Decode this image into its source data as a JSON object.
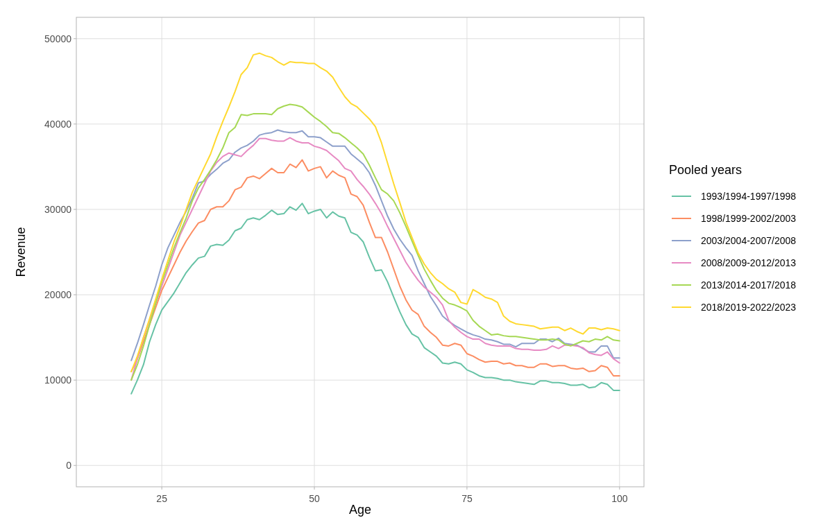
{
  "chart_data": {
    "type": "line",
    "xlabel": "Age",
    "ylabel": "Revenue",
    "legend_title": "Pooled years",
    "x": [
      20,
      21,
      22,
      23,
      24,
      25,
      26,
      27,
      28,
      29,
      30,
      31,
      32,
      33,
      34,
      35,
      36,
      37,
      38,
      39,
      40,
      41,
      42,
      43,
      44,
      45,
      46,
      47,
      48,
      49,
      50,
      51,
      52,
      53,
      54,
      55,
      56,
      57,
      58,
      59,
      60,
      61,
      62,
      63,
      64,
      65,
      66,
      67,
      68,
      69,
      70,
      71,
      72,
      73,
      74,
      75,
      76,
      77,
      78,
      79,
      80,
      81,
      82,
      83,
      84,
      85,
      86,
      87,
      88,
      89,
      90,
      91,
      92,
      93,
      94,
      95,
      96,
      97,
      98,
      99,
      100
    ],
    "series": [
      {
        "name": "1993/1994-1997/1998",
        "color": "#66c2a5",
        "values": [
          8400,
          10000,
          11800,
          14500,
          16500,
          18200,
          19200,
          20200,
          21400,
          22600,
          23500,
          24300,
          24500,
          25700,
          25900,
          25800,
          26400,
          27500,
          27800,
          28800,
          29000,
          28800,
          29300,
          29900,
          29400,
          29500,
          30300,
          29900,
          30700,
          29500,
          29800,
          30000,
          29000,
          29700,
          29200,
          29000,
          27300,
          27000,
          26200,
          24400,
          22800,
          22900,
          21500,
          19700,
          18000,
          16500,
          15400,
          15000,
          13800,
          13300,
          12800,
          12000,
          11900,
          12100,
          11900,
          11200,
          10900,
          10500,
          10300,
          10300,
          10200,
          10000,
          10000,
          9800,
          9700,
          9600,
          9500,
          9900,
          9900,
          9700,
          9700,
          9600,
          9400,
          9400,
          9500,
          9100,
          9200,
          9700,
          9500,
          8800,
          8800
        ]
      },
      {
        "name": "1998/1999-2002/2003",
        "color": "#fc8d62",
        "values": [
          11000,
          12500,
          14500,
          16500,
          18500,
          20500,
          22000,
          23500,
          25000,
          26300,
          27400,
          28400,
          28700,
          30000,
          30300,
          30300,
          31000,
          32300,
          32600,
          33700,
          33900,
          33600,
          34200,
          34800,
          34300,
          34300,
          35300,
          34900,
          35800,
          34500,
          34800,
          35000,
          33700,
          34500,
          34000,
          33700,
          31800,
          31500,
          30500,
          28500,
          26700,
          26700,
          25000,
          23000,
          21000,
          19400,
          18200,
          17700,
          16300,
          15600,
          15000,
          14100,
          14000,
          14300,
          14100,
          13100,
          12800,
          12400,
          12100,
          12200,
          12200,
          11900,
          12000,
          11700,
          11700,
          11500,
          11500,
          11900,
          11900,
          11600,
          11700,
          11700,
          11400,
          11300,
          11400,
          11000,
          11100,
          11700,
          11500,
          10500,
          10500
        ]
      },
      {
        "name": "2003/2004-2007/2008",
        "color": "#8da0cb",
        "values": [
          12300,
          14300,
          16500,
          18800,
          21000,
          23500,
          25500,
          27000,
          28500,
          29800,
          31300,
          33100,
          33300,
          34100,
          34700,
          35400,
          35800,
          36700,
          37200,
          37500,
          38000,
          38700,
          38900,
          39000,
          39300,
          39100,
          39000,
          39000,
          39200,
          38500,
          38500,
          38400,
          37900,
          37400,
          37400,
          37400,
          36500,
          35900,
          35300,
          34300,
          32800,
          31000,
          29200,
          27700,
          26500,
          25500,
          24600,
          22800,
          21300,
          19800,
          18700,
          17500,
          16900,
          16400,
          16000,
          15600,
          15300,
          15100,
          14800,
          14700,
          14500,
          14200,
          14200,
          13900,
          14300,
          14300,
          14300,
          14800,
          14800,
          14500,
          14900,
          14300,
          14200,
          14100,
          13700,
          13300,
          13300,
          14000,
          14000,
          12600,
          12600
        ]
      },
      {
        "name": "2008/2009-2012/2013",
        "color": "#e78ac3",
        "values": [
          10000,
          12500,
          15000,
          17000,
          19000,
          21000,
          23000,
          25000,
          27000,
          28500,
          30000,
          31500,
          33000,
          34500,
          35500,
          36200,
          36600,
          36400,
          36200,
          36900,
          37500,
          38300,
          38300,
          38100,
          38000,
          38000,
          38400,
          38000,
          37800,
          37800,
          37400,
          37200,
          36900,
          36300,
          35700,
          34800,
          34500,
          33500,
          32700,
          31800,
          30700,
          29500,
          28000,
          26600,
          25200,
          23800,
          22700,
          21700,
          20900,
          20300,
          19700,
          18800,
          17000,
          16200,
          15600,
          15100,
          14800,
          14800,
          14300,
          14100,
          14000,
          14000,
          14000,
          13700,
          13600,
          13600,
          13500,
          13500,
          13600,
          14000,
          13700,
          14100,
          14100,
          14000,
          13800,
          13200,
          13000,
          12900,
          13300,
          12500,
          12000
        ]
      },
      {
        "name": "2013/2014-2017/2018",
        "color": "#a6d854",
        "values": [
          10000,
          11800,
          14000,
          16500,
          19000,
          21500,
          23500,
          25500,
          27300,
          29000,
          31000,
          32500,
          33500,
          34600,
          35800,
          37200,
          39000,
          39600,
          41100,
          41000,
          41200,
          41200,
          41200,
          41100,
          41800,
          42100,
          42300,
          42200,
          42000,
          41400,
          40800,
          40300,
          39700,
          39000,
          38900,
          38400,
          37800,
          37200,
          36500,
          35200,
          33700,
          32300,
          31800,
          31000,
          29600,
          28000,
          26300,
          24600,
          23000,
          21700,
          20500,
          19600,
          19000,
          18800,
          18500,
          18100,
          17000,
          16300,
          15800,
          15300,
          15400,
          15200,
          15100,
          15100,
          15000,
          14900,
          14800,
          14700,
          14700,
          14800,
          14700,
          14200,
          14000,
          14300,
          14600,
          14500,
          14800,
          14700,
          15100,
          14700,
          14600
        ]
      },
      {
        "name": "2018/2019-2022/2023",
        "color": "#ffd92f",
        "values": [
          11000,
          12800,
          15000,
          17200,
          19500,
          21800,
          24000,
          26200,
          28000,
          30000,
          32000,
          33500,
          35000,
          36500,
          38500,
          40300,
          42000,
          43800,
          45800,
          46600,
          48100,
          48300,
          48000,
          47800,
          47300,
          46900,
          47300,
          47200,
          47200,
          47100,
          47100,
          46600,
          46200,
          45500,
          44300,
          43200,
          42400,
          42000,
          41300,
          40600,
          39700,
          37800,
          35400,
          33000,
          30800,
          28500,
          26700,
          24900,
          23600,
          22600,
          21800,
          21300,
          20700,
          20300,
          19100,
          18900,
          20600,
          20200,
          19700,
          19500,
          19100,
          17500,
          16900,
          16600,
          16500,
          16400,
          16300,
          16000,
          16100,
          16200,
          16200,
          15800,
          16100,
          15700,
          15400,
          16100,
          16100,
          15900,
          16100,
          16000,
          15800
        ]
      }
    ],
    "xlim": [
      11,
      104
    ],
    "xticks": [
      25,
      50,
      75,
      100
    ],
    "ylim": [
      -2500,
      52500
    ],
    "yticks": [
      0,
      10000,
      20000,
      30000,
      40000,
      50000
    ],
    "grid": true,
    "legend": "right",
    "marker": "none",
    "line_style": "solid"
  }
}
